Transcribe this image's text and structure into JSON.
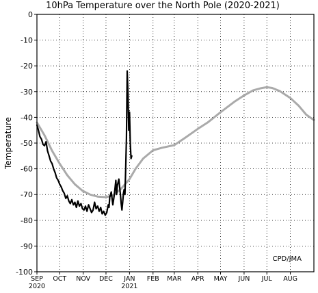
{
  "chart_data": {
    "type": "line",
    "title": "10hPa Temperature over the North Pole (2020-2021)",
    "ylabel": "Temperature",
    "credit": "CPD/JMA",
    "ylim": [
      -100,
      0
    ],
    "yticks": [
      0,
      -10,
      -20,
      -30,
      -40,
      -50,
      -60,
      -70,
      -80,
      -90,
      -100
    ],
    "xlim": [
      0,
      365
    ],
    "grid": true,
    "x_ticks": [
      {
        "day": 0,
        "label": "SEP",
        "sublabel": "2020"
      },
      {
        "day": 30,
        "label": "OCT",
        "sublabel": ""
      },
      {
        "day": 61,
        "label": "NOV",
        "sublabel": ""
      },
      {
        "day": 91,
        "label": "DEC",
        "sublabel": ""
      },
      {
        "day": 122,
        "label": "JAN",
        "sublabel": "2021"
      },
      {
        "day": 153,
        "label": "FEB",
        "sublabel": ""
      },
      {
        "day": 181,
        "label": "MAR",
        "sublabel": ""
      },
      {
        "day": 212,
        "label": "APR",
        "sublabel": ""
      },
      {
        "day": 242,
        "label": "MAY",
        "sublabel": ""
      },
      {
        "day": 273,
        "label": "JUN",
        "sublabel": ""
      },
      {
        "day": 303,
        "label": "JUL",
        "sublabel": ""
      },
      {
        "day": 334,
        "label": "AUG",
        "sublabel": ""
      }
    ],
    "series": [
      {
        "color": "#aaaaaa",
        "x": [
          0,
          10,
          20,
          30,
          40,
          50,
          60,
          70,
          80,
          91,
          100,
          110,
          122,
          130,
          140,
          153,
          165,
          181,
          195,
          212,
          225,
          242,
          260,
          273,
          285,
          295,
          303,
          310,
          320,
          334,
          345,
          355,
          365
        ],
        "y": [
          -42,
          -47,
          -53,
          -58,
          -62.5,
          -66,
          -68.5,
          -70,
          -70.8,
          -71,
          -70.3,
          -68,
          -64,
          -60,
          -56,
          -52.8,
          -51.8,
          -50.8,
          -48,
          -44.5,
          -42,
          -38,
          -34,
          -31.5,
          -29.5,
          -28.7,
          -28.3,
          -28.6,
          -29.8,
          -32.5,
          -35.5,
          -39,
          -41
        ]
      },
      {
        "color": "#000000",
        "x": [
          0,
          2,
          4,
          6,
          8,
          10,
          12,
          14,
          16,
          18,
          20,
          22,
          24,
          26,
          28,
          30,
          32,
          34,
          36,
          38,
          40,
          42,
          44,
          46,
          48,
          50,
          52,
          54,
          56,
          58,
          60,
          62,
          64,
          66,
          68,
          70,
          72,
          74,
          76,
          78,
          80,
          82,
          84,
          86,
          88,
          90,
          92,
          94,
          95,
          96,
          98,
          100,
          102,
          104,
          105,
          106,
          108,
          109,
          110,
          111,
          112,
          113,
          114,
          115,
          116,
          117,
          118,
          119,
          120,
          121,
          122,
          123,
          124,
          125
        ],
        "y": [
          -43,
          -45,
          -47.5,
          -48.5,
          -50.5,
          -51,
          -49.5,
          -53,
          -55,
          -57,
          -58,
          -60,
          -61.5,
          -63.5,
          -64.5,
          -66,
          -67,
          -68.5,
          -69.5,
          -71.5,
          -70.5,
          -72.5,
          -73.5,
          -72,
          -74,
          -73,
          -75,
          -72.5,
          -74.5,
          -73.5,
          -75.5,
          -76,
          -74.5,
          -76.5,
          -74,
          -75.5,
          -77,
          -76,
          -73,
          -75.5,
          -74.5,
          -76.5,
          -75,
          -77.5,
          -76.5,
          -78,
          -77,
          -74,
          -75,
          -71,
          -69,
          -74,
          -70,
          -64.5,
          -70,
          -66.5,
          -64,
          -67,
          -70,
          -73.5,
          -76,
          -73,
          -69.5,
          -68,
          -70,
          -60,
          -48,
          -22,
          -31,
          -45,
          -38,
          -50,
          -56,
          -55
        ]
      }
    ]
  }
}
